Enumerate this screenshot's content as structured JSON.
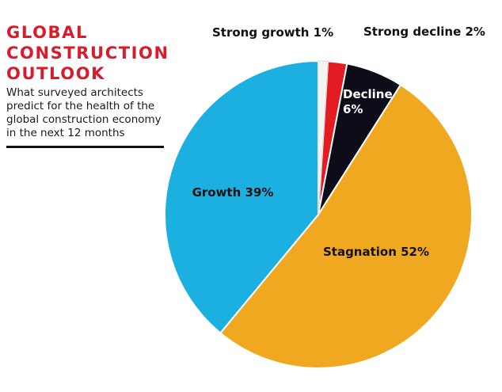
{
  "header": {
    "title_lines": [
      "GLOBAL",
      "CONSTRUCTION",
      "OUTLOOK"
    ],
    "subtitle": "What surveyed architects predict for the health of the global construction economy in the next 12 months"
  },
  "chart_data": {
    "type": "pie",
    "title": "GLOBAL CONSTRUCTION OUTLOOK",
    "subtitle": "What surveyed architects predict for the health of the global construction economy in the next 12 months",
    "slices": [
      {
        "label": "Strong growth",
        "value": 1,
        "display": "Strong growth 1%",
        "color": "#f4f4f4"
      },
      {
        "label": "Strong decline",
        "value": 2,
        "display": "Strong decline 2%",
        "color": "#e51b24"
      },
      {
        "label": "Decline",
        "value": 6,
        "display_lines": [
          "Decline",
          "6%"
        ],
        "color": "#0d0d1a"
      },
      {
        "label": "Stagnation",
        "value": 52,
        "display": "Stagnation 52%",
        "color": "#f0a820"
      },
      {
        "label": "Growth",
        "value": 39,
        "display": "Growth 39%",
        "color": "#1cb0e0"
      }
    ],
    "unit": "%"
  }
}
